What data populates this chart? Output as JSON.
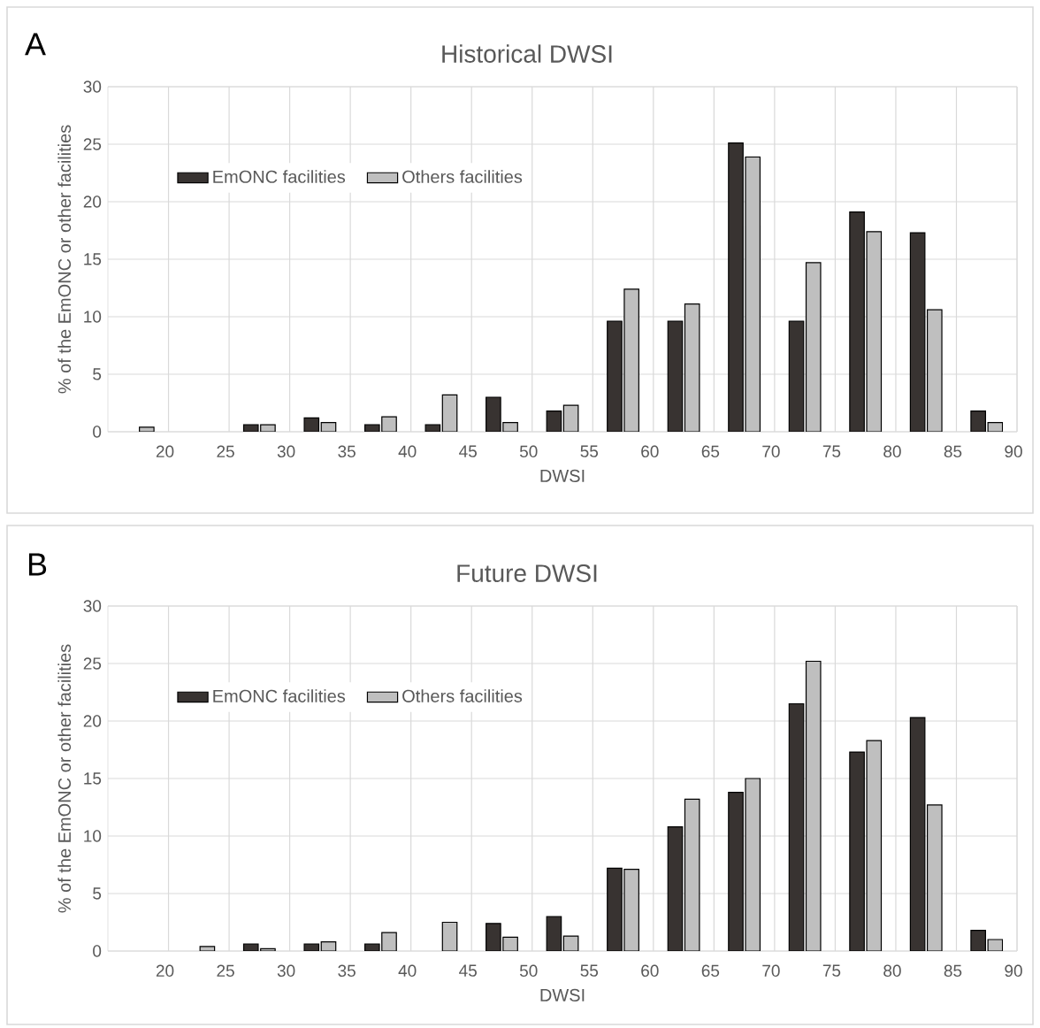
{
  "chart_data": [
    {
      "type": "bar",
      "title": "Historical DWSI",
      "xlabel": "DWSI",
      "ylabel": "% of the EmONC or other facilities",
      "annotations": [
        "A"
      ],
      "x": [
        17.5,
        22.5,
        27.5,
        32.5,
        37.5,
        42.5,
        47.5,
        52.5,
        57.5,
        62.5,
        67.5,
        72.5,
        77.5,
        82.5,
        87.5
      ],
      "xlim": [
        15,
        90
      ],
      "xticks": [
        20,
        25,
        30,
        35,
        40,
        45,
        50,
        55,
        60,
        65,
        70,
        75,
        80,
        85,
        90
      ],
      "ylim": [
        0,
        30
      ],
      "yticks": [
        0,
        5,
        10,
        15,
        20,
        25,
        30
      ],
      "grid": true,
      "legend": "top left",
      "series": [
        {
          "name": "EmONC facilities",
          "color": "#383331",
          "values": [
            null,
            null,
            0.6,
            1.2,
            0.6,
            0.6,
            3.0,
            1.8,
            9.6,
            9.6,
            25.1,
            9.6,
            19.1,
            17.3,
            1.8
          ]
        },
        {
          "name": "Others facilities",
          "color": "#bfbfbf",
          "values": [
            0.4,
            null,
            0.6,
            0.8,
            1.3,
            3.2,
            0.8,
            2.3,
            12.4,
            11.1,
            23.9,
            14.7,
            17.4,
            10.6,
            0.8
          ]
        }
      ]
    },
    {
      "type": "bar",
      "title": "Future DWSI",
      "xlabel": "DWSI",
      "ylabel": "% of the EmONC or other facilities",
      "annotations": [
        "B"
      ],
      "x": [
        22.5,
        27.5,
        32.5,
        37.5,
        42.5,
        47.5,
        52.5,
        57.5,
        62.5,
        67.5,
        72.5,
        77.5,
        82.5,
        87.5
      ],
      "xlim": [
        15,
        90
      ],
      "xticks": [
        20,
        25,
        30,
        35,
        40,
        45,
        50,
        55,
        60,
        65,
        70,
        75,
        80,
        85,
        90
      ],
      "ylim": [
        0,
        30
      ],
      "yticks": [
        0,
        5,
        10,
        15,
        20,
        25,
        30
      ],
      "grid": true,
      "legend": "top left",
      "series": [
        {
          "name": "EmONC facilities",
          "color": "#383331",
          "values": [
            null,
            0.6,
            0.6,
            0.6,
            null,
            2.4,
            3.0,
            7.2,
            10.8,
            13.8,
            21.5,
            17.3,
            20.3,
            1.8
          ]
        },
        {
          "name": "Others facilities",
          "color": "#bfbfbf",
          "values": [
            0.4,
            0.2,
            0.8,
            1.6,
            2.5,
            1.2,
            1.3,
            7.1,
            13.2,
            15.0,
            25.2,
            18.3,
            12.7,
            1.0
          ]
        }
      ]
    }
  ]
}
